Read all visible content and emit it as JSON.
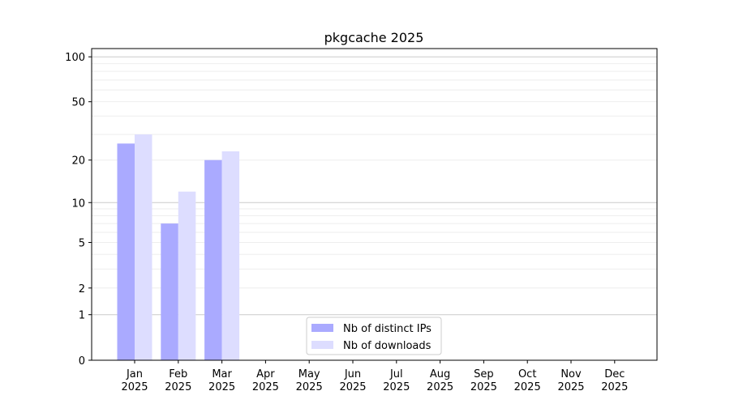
{
  "chart_data": {
    "type": "bar",
    "title": "pkgcache 2025",
    "xlabel": "",
    "ylabel": "",
    "yscale": "symlog",
    "ylim": [
      0,
      110
    ],
    "yticks": [
      0,
      1,
      2,
      5,
      10,
      20,
      50,
      100
    ],
    "grid": true,
    "legend_position": "bottom-center",
    "categories": [
      "Jan\n2025",
      "Feb\n2025",
      "Mar\n2025",
      "Apr\n2025",
      "May\n2025",
      "Jun\n2025",
      "Jul\n2025",
      "Aug\n2025",
      "Sep\n2025",
      "Oct\n2025",
      "Nov\n2025",
      "Dec\n2025"
    ],
    "series": [
      {
        "name": "Nb of distinct IPs",
        "color": "#aaaaff",
        "values": [
          26,
          7,
          20,
          0,
          0,
          0,
          0,
          0,
          0,
          0,
          0,
          0
        ]
      },
      {
        "name": "Nb of downloads",
        "color": "#ddddff",
        "values": [
          30,
          12,
          23,
          0,
          0,
          0,
          0,
          0,
          0,
          0,
          0,
          0
        ]
      }
    ]
  }
}
